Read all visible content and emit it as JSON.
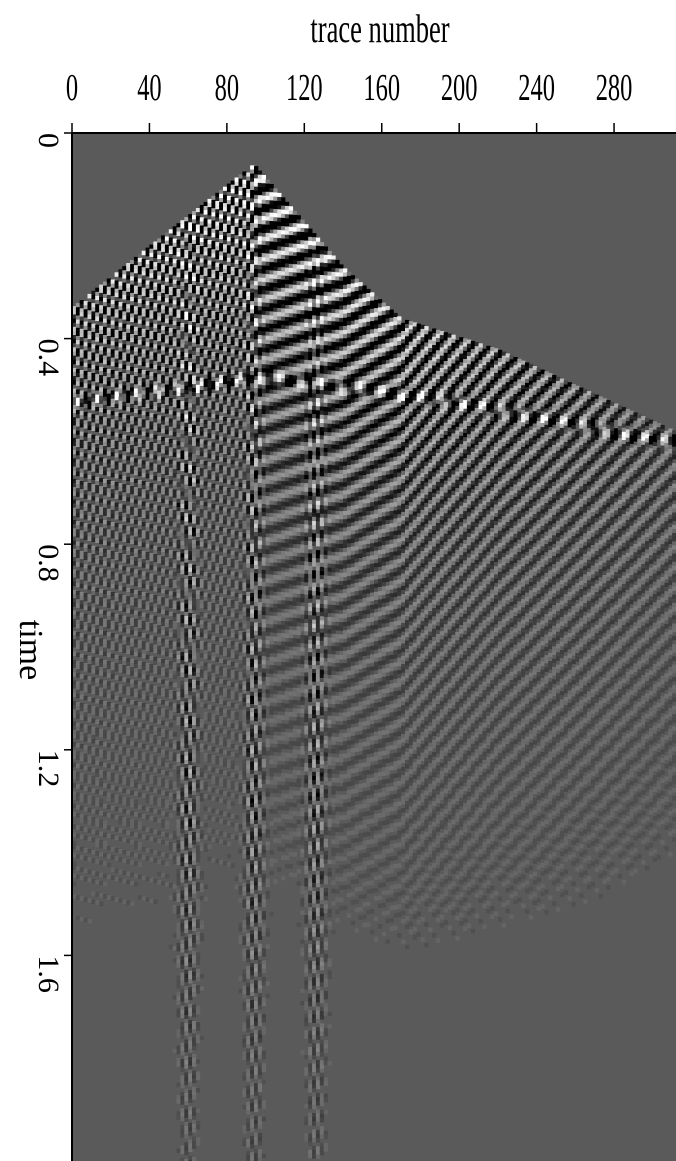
{
  "chart_data": {
    "type": "heatmap",
    "title": "",
    "xlabel": "trace number",
    "ylabel": "time",
    "x_axis_position": "top",
    "y_axis_position": "left",
    "xlim": [
      0,
      312
    ],
    "ylim": [
      0,
      2.0
    ],
    "x_ticks": [
      0,
      40,
      80,
      120,
      160,
      200,
      240,
      280
    ],
    "y_ticks": [
      0,
      0.4,
      0.8,
      1.2,
      1.6
    ],
    "y_tick_labels": [
      "0",
      "0.4",
      "0.8",
      "1.2",
      "1.6"
    ],
    "colormap": "grayscale",
    "background_color": "#5a5a5a",
    "first_break": {
      "x": [
        0,
        40,
        94,
        140,
        170,
        220,
        260,
        312
      ],
      "y": [
        0.34,
        0.22,
        0.06,
        0.26,
        0.36,
        0.42,
        0.49,
        0.58
      ]
    },
    "source_trace": 94,
    "strong_reflector": {
      "x": [
        0,
        100,
        200,
        312
      ],
      "y": [
        0.52,
        0.47,
        0.52,
        0.6
      ]
    },
    "ground_roll_columns": [
      60,
      94,
      126
    ],
    "grid": false,
    "legend": "none"
  }
}
